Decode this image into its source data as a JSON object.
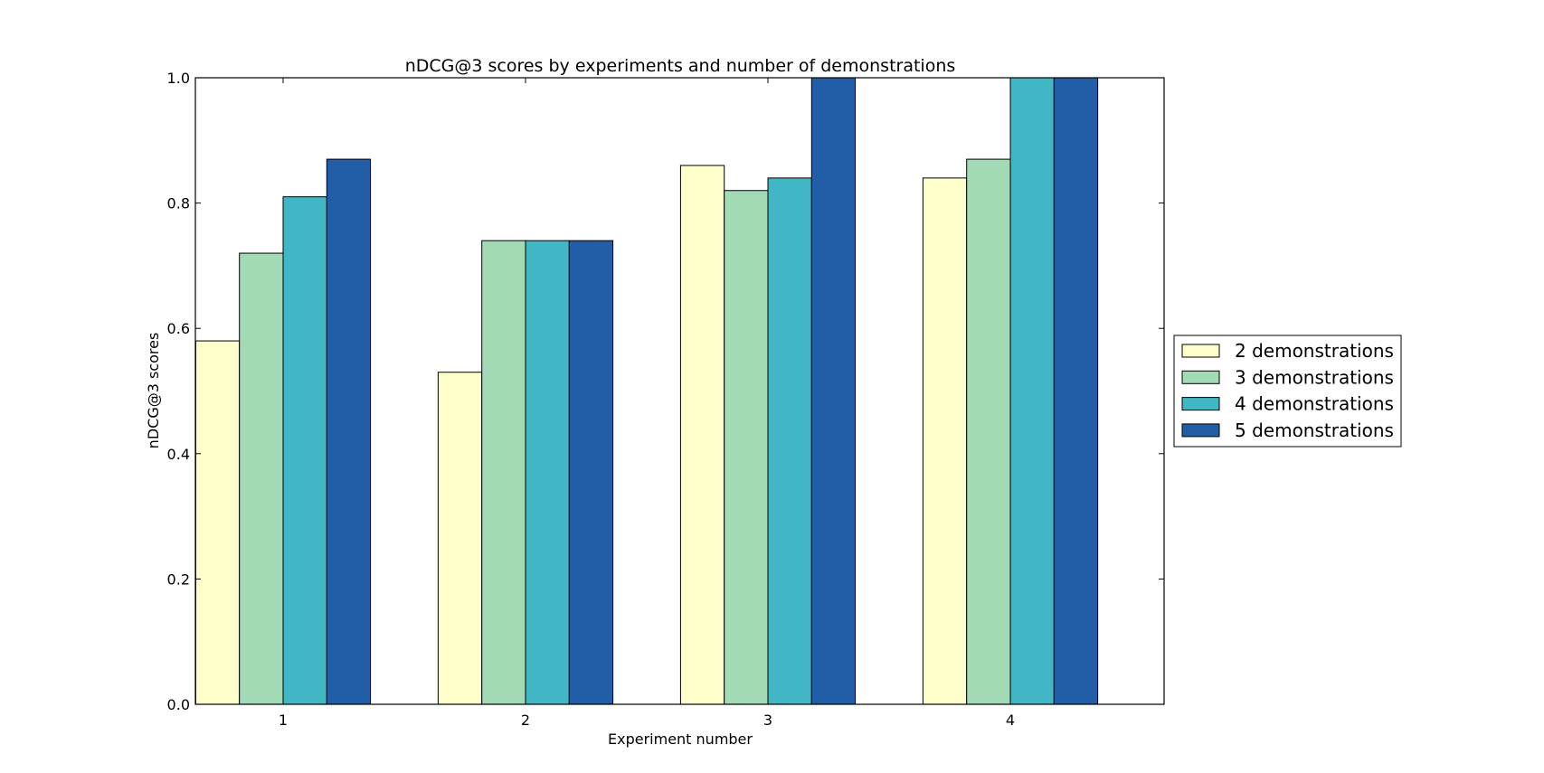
{
  "chart_data": {
    "type": "bar",
    "title": "nDCG@3 scores by experiments and number of demonstrations",
    "xlabel": "Experiment number",
    "ylabel": "nDCG@3 scores",
    "categories": [
      "1",
      "2",
      "3",
      "4"
    ],
    "ylim": [
      0.0,
      1.0
    ],
    "yticks": [
      "0.0",
      "0.2",
      "0.4",
      "0.6",
      "0.8",
      "1.0"
    ],
    "grid": false,
    "legend_position": "right-center",
    "series": [
      {
        "name": "2 demonstrations",
        "color": "#ffffcc",
        "values": [
          0.58,
          0.53,
          0.86,
          0.84
        ]
      },
      {
        "name": "3 demonstrations",
        "color": "#a1dab4",
        "values": [
          0.72,
          0.74,
          0.82,
          0.87
        ]
      },
      {
        "name": "4 demonstrations",
        "color": "#41b6c4",
        "values": [
          0.81,
          0.74,
          0.84,
          1.0
        ]
      },
      {
        "name": "5 demonstrations",
        "color": "#225ea8",
        "values": [
          0.87,
          0.74,
          1.0,
          1.0
        ]
      }
    ]
  }
}
